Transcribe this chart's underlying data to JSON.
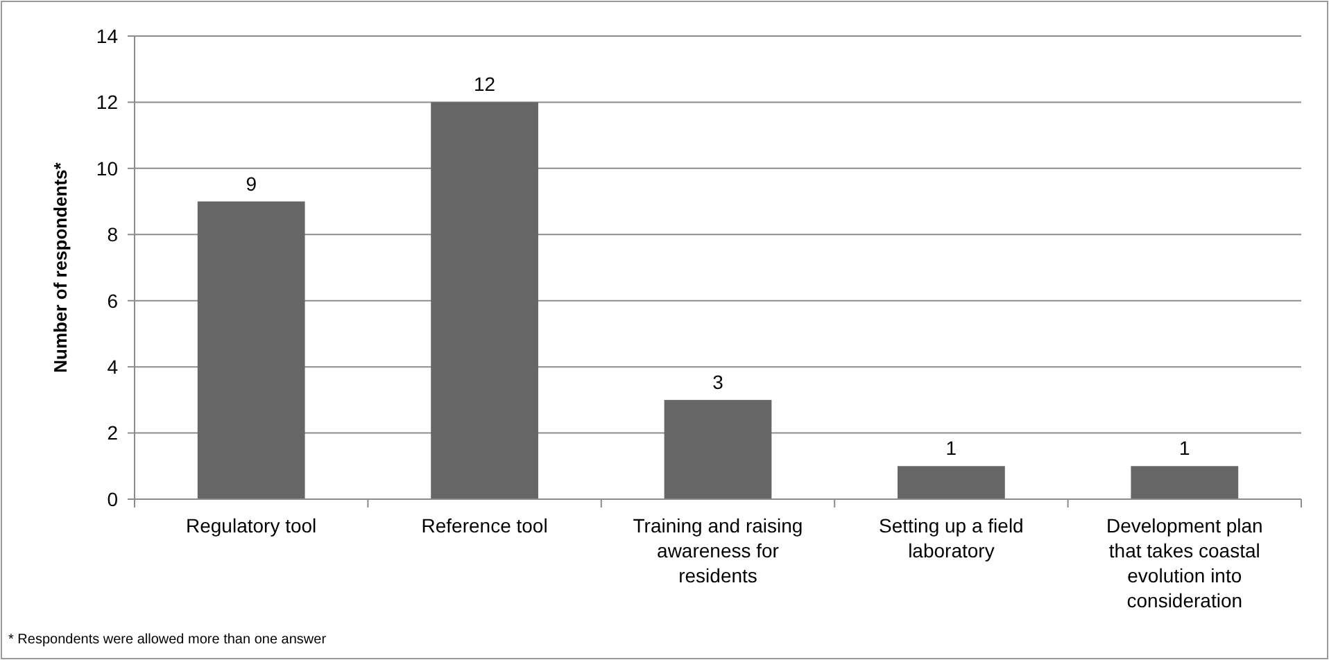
{
  "chart_data": {
    "type": "bar",
    "categories": [
      "Regulatory tool",
      "Reference tool",
      "Training and raising awareness for residents",
      "Setting up a field laboratory",
      "Development plan that takes coastal evolution into consideration"
    ],
    "values": [
      9,
      12,
      3,
      1,
      1
    ],
    "color": "#666666",
    "ylabel": "Number of respondents*",
    "ylim": [
      0,
      14
    ],
    "yticks": [
      0,
      2,
      4,
      6,
      8,
      10,
      12,
      14
    ],
    "grid": "y",
    "data_labels": true,
    "annotations": [
      "* Respondents were allowed more than one answer"
    ]
  }
}
